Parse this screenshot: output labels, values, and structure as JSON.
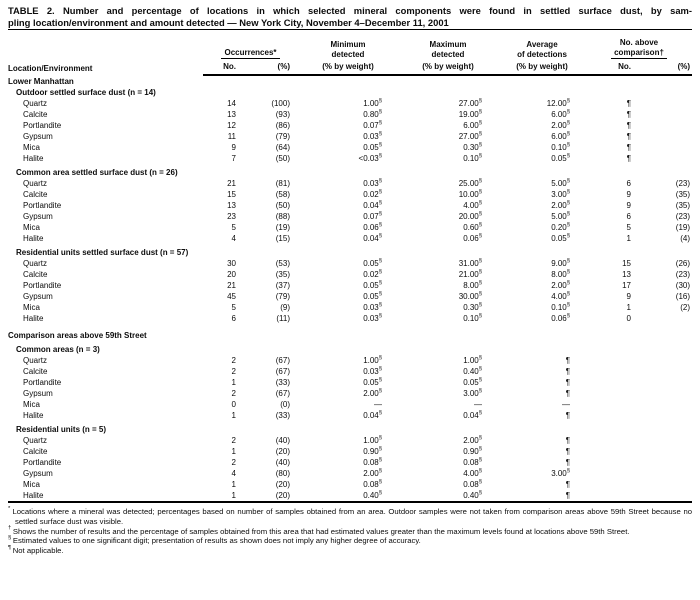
{
  "title": {
    "line1": "TABLE 2. Number and percentage of locations in which selected mineral components were found in settled surface dust, by sam-",
    "line2": "pling location/environment and amount detected — New York City, November 4–December 11, 2001"
  },
  "header": {
    "col_location": "Location/Environment",
    "occurrences": "Occurrences*",
    "no": "No.",
    "pct": "(%)",
    "minimum": [
      "Minimum",
      "detected"
    ],
    "maximum": [
      "Maximum",
      "detected"
    ],
    "average": [
      "Average",
      "of detections"
    ],
    "weight": "(% by weight)",
    "above": [
      "No. above",
      "comparison†"
    ]
  },
  "rows": [
    {
      "t": "section",
      "label": "Lower Manhattan"
    },
    {
      "t": "sub",
      "label": "Outdoor settled surface dust (n = 14)"
    },
    {
      "t": "d",
      "label": "Quartz",
      "c": [
        "14",
        "(100)",
        "1.00§",
        "27.00§",
        "12.00§",
        "¶",
        ""
      ]
    },
    {
      "t": "d",
      "label": "Calcite",
      "c": [
        "13",
        "(93)",
        "0.80§",
        "19.00§",
        "6.00§",
        "¶",
        ""
      ]
    },
    {
      "t": "d",
      "label": "Portlandite",
      "c": [
        "12",
        "(86)",
        "0.07§",
        "6.00§",
        "2.00§",
        "¶",
        ""
      ]
    },
    {
      "t": "d",
      "label": "Gypsum",
      "c": [
        "11",
        "(79)",
        "0.03§",
        "27.00§",
        "6.00§",
        "¶",
        ""
      ]
    },
    {
      "t": "d",
      "label": "Mica",
      "c": [
        "9",
        "(64)",
        "0.05§",
        "0.30§",
        "0.10§",
        "¶",
        ""
      ]
    },
    {
      "t": "d",
      "label": "Halite",
      "c": [
        "7",
        "(50)",
        "<0.03§",
        "0.10§",
        "0.05§",
        "¶",
        ""
      ]
    },
    {
      "t": "sub",
      "label": "Common area settled surface dust (n = 26)",
      "gap": "sm"
    },
    {
      "t": "d",
      "label": "Quartz",
      "c": [
        "21",
        "(81)",
        "0.03§",
        "25.00§",
        "5.00§",
        "6",
        "(23)"
      ]
    },
    {
      "t": "d",
      "label": "Calcite",
      "c": [
        "15",
        "(58)",
        "0.02§",
        "10.00§",
        "3.00§",
        "9",
        "(35)"
      ]
    },
    {
      "t": "d",
      "label": "Portlandite",
      "c": [
        "13",
        "(50)",
        "0.04§",
        "4.00§",
        "2.00§",
        "9",
        "(35)"
      ]
    },
    {
      "t": "d",
      "label": "Gypsum",
      "c": [
        "23",
        "(88)",
        "0.07§",
        "20.00§",
        "5.00§",
        "6",
        "(23)"
      ]
    },
    {
      "t": "d",
      "label": "Mica",
      "c": [
        "5",
        "(19)",
        "0.06§",
        "0.60§",
        "0.20§",
        "5",
        "(19)"
      ]
    },
    {
      "t": "d",
      "label": "Halite",
      "c": [
        "4",
        "(15)",
        "0.04§",
        "0.06§",
        "0.05§",
        "1",
        "(4)"
      ]
    },
    {
      "t": "sub",
      "label": "Residential units settled surface dust (n = 57)",
      "gap": "sm"
    },
    {
      "t": "d",
      "label": "Quartz",
      "c": [
        "30",
        "(53)",
        "0.05§",
        "31.00§",
        "9.00§",
        "15",
        "(26)"
      ]
    },
    {
      "t": "d",
      "label": "Calcite",
      "c": [
        "20",
        "(35)",
        "0.02§",
        "21.00§",
        "8.00§",
        "13",
        "(23)"
      ]
    },
    {
      "t": "d",
      "label": "Portlandite",
      "c": [
        "21",
        "(37)",
        "0.05§",
        "8.00§",
        "2.00§",
        "17",
        "(30)"
      ]
    },
    {
      "t": "d",
      "label": "Gypsum",
      "c": [
        "45",
        "(79)",
        "0.05§",
        "30.00§",
        "4.00§",
        "9",
        "(16)"
      ]
    },
    {
      "t": "d",
      "label": "Mica",
      "c": [
        "5",
        "(9)",
        "0.03§",
        "0.30§",
        "0.10§",
        "1",
        "(2)"
      ]
    },
    {
      "t": "d",
      "label": "Halite",
      "c": [
        "6",
        "(11)",
        "0.03§",
        "0.10§",
        "0.06§",
        "0",
        ""
      ]
    },
    {
      "t": "section",
      "label": "Comparison areas above 59th Street",
      "gap": "lg"
    },
    {
      "t": "sub",
      "label": "Common areas (n = 3)",
      "gap": "sm"
    },
    {
      "t": "d",
      "label": "Quartz",
      "c": [
        "2",
        "(67)",
        "1.00§",
        "1.00§",
        "¶",
        "",
        ""
      ]
    },
    {
      "t": "d",
      "label": "Calcite",
      "c": [
        "2",
        "(67)",
        "0.03§",
        "0.40§",
        "¶",
        "",
        ""
      ]
    },
    {
      "t": "d",
      "label": "Portlandite",
      "c": [
        "1",
        "(33)",
        "0.05§",
        "0.05§",
        "¶",
        "",
        ""
      ]
    },
    {
      "t": "d",
      "label": "Gypsum",
      "c": [
        "2",
        "(67)",
        "2.00§",
        "3.00§",
        "¶",
        "",
        ""
      ]
    },
    {
      "t": "d",
      "label": "Mica",
      "c": [
        "0",
        "(0)",
        "—",
        "—",
        "—",
        "",
        ""
      ]
    },
    {
      "t": "d",
      "label": "Halite",
      "c": [
        "1",
        "(33)",
        "0.04§",
        "0.04§",
        "¶",
        "",
        ""
      ]
    },
    {
      "t": "sub",
      "label": "Residential units (n = 5)",
      "gap": "sm"
    },
    {
      "t": "d",
      "label": "Quartz",
      "c": [
        "2",
        "(40)",
        "1.00§",
        "2.00§",
        "¶",
        "",
        ""
      ]
    },
    {
      "t": "d",
      "label": "Calcite",
      "c": [
        "1",
        "(20)",
        "0.90§",
        "0.90§",
        "¶",
        "",
        ""
      ]
    },
    {
      "t": "d",
      "label": "Portlandite",
      "c": [
        "2",
        "(40)",
        "0.08§",
        "0.08§",
        "¶",
        "",
        ""
      ]
    },
    {
      "t": "d",
      "label": "Gypsum",
      "c": [
        "4",
        "(80)",
        "2.00§",
        "4.00§",
        "3.00§",
        "",
        ""
      ]
    },
    {
      "t": "d",
      "label": "Mica",
      "c": [
        "1",
        "(20)",
        "0.08§",
        "0.08§",
        "¶",
        "",
        ""
      ]
    },
    {
      "t": "d",
      "label": "Halite",
      "c": [
        "1",
        "(20)",
        "0.40§",
        "0.40§",
        "¶",
        "",
        ""
      ]
    }
  ],
  "footnotes": [
    {
      "marker": "*",
      "text": "Locations where a mineral was detected; percentages based on number of samples obtained from an area. Outdoor samples were not taken from comparison areas above 59th Street because no settled surface dust was visible."
    },
    {
      "marker": "†",
      "text": "Shows the number of results and the percentage of samples obtained from this area that had estimated values greater than the maximum levels found at locations above 59th Street."
    },
    {
      "marker": "§",
      "text": "Estimated values to one significant digit; presentation of results as shown does not imply any higher degree of accuracy."
    },
    {
      "marker": "¶",
      "text": "Not applicable."
    }
  ]
}
